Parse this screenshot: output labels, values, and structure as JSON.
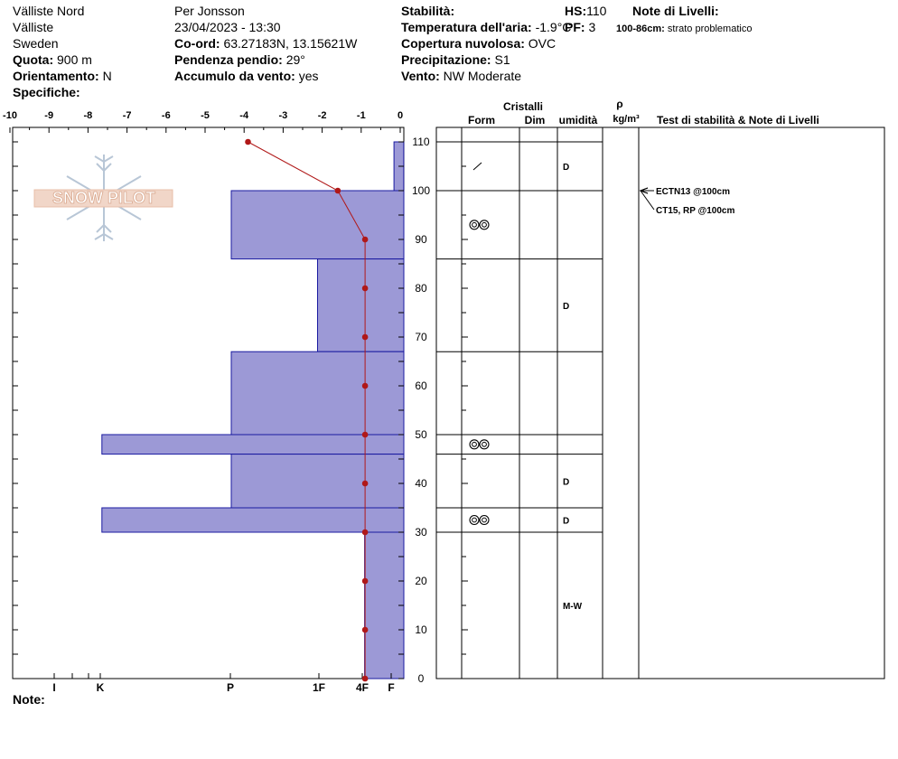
{
  "header": {
    "location": "Välliste Nord",
    "area": "Välliste",
    "country": "Sweden",
    "observer": "Per Jonsson",
    "datetime": "23/04/2023 - 13:30",
    "quota_label": "Quota:",
    "quota_value": "900 m",
    "orient_label": "Orientamento:",
    "orient_value": "N",
    "specifiche_label": "Specifiche:",
    "coord_label": "Co-ord:",
    "coord_value": "63.27183N, 13.15621W",
    "slope_label": "Pendenza pendio:",
    "slope_value": "29°",
    "windload_label": "Accumulo da vento:",
    "windload_value": "yes",
    "stability_label": "Stabilità:",
    "airtemp_label": "Temperatura dell'aria:",
    "airtemp_value": "-1.9°C",
    "cloud_label": "Copertura nuvolosa:",
    "cloud_value": "OVC",
    "precip_label": "Precipitazione:",
    "precip_value": "S1",
    "wind_label": "Vento:",
    "wind_value": "NW Moderate",
    "hs_label": "HS:",
    "hs_value": "110",
    "pf_label": "PF:",
    "pf_value": "3",
    "layer_notes_label": "Note di Livelli:",
    "layer_notes_range": "100-86cm:",
    "layer_notes_text": "strato problematico",
    "note_label": "Note:"
  },
  "logo_text": "SNOW PILOT",
  "columns": {
    "cristalli": "Cristalli",
    "form": "Form",
    "dim": "Dim",
    "umidita": "umidità",
    "rho": "ρ",
    "rho_unit": "kg/m³",
    "tests": "Test di stabilità & Note di Livelli"
  },
  "chart_data": {
    "type": "snow_profile",
    "temperature_axis": {
      "ticks": [
        "-10",
        "-9",
        "-8",
        "-7",
        "-6",
        "-5",
        "-4",
        "-3",
        "-2",
        "-1",
        "0"
      ],
      "range": [
        -10,
        0
      ]
    },
    "height_axis": {
      "ticks": [
        "0",
        "10",
        "20",
        "30",
        "40",
        "50",
        "60",
        "70",
        "80",
        "90",
        "100",
        "110"
      ],
      "range": [
        0,
        110
      ]
    },
    "hardness_axis": {
      "ticks": [
        "I",
        "K",
        "P",
        "1F",
        "4F",
        "F"
      ]
    },
    "hardness_layers": [
      {
        "top": 110,
        "bottom": 100,
        "hardness_index": 0.25
      },
      {
        "top": 100,
        "bottom": 86,
        "hardness_index": 4.4
      },
      {
        "top": 86,
        "bottom": 67,
        "hardness_index": 2.2
      },
      {
        "top": 67,
        "bottom": 50,
        "hardness_index": 4.4
      },
      {
        "top": 50,
        "bottom": 46,
        "hardness_index": 7.7
      },
      {
        "top": 46,
        "bottom": 35,
        "hardness_index": 4.4
      },
      {
        "top": 35,
        "bottom": 30,
        "hardness_index": 7.7
      },
      {
        "top": 30,
        "bottom": 0,
        "hardness_index": 1.0
      }
    ],
    "temperature_profile": [
      {
        "height": 110,
        "temp": -3.9
      },
      {
        "height": 100,
        "temp": -1.6
      },
      {
        "height": 90,
        "temp": -0.9
      },
      {
        "height": 80,
        "temp": -0.9
      },
      {
        "height": 70,
        "temp": -0.9
      },
      {
        "height": 60,
        "temp": -0.9
      },
      {
        "height": 50,
        "temp": -0.9
      },
      {
        "height": 40,
        "temp": -0.9
      },
      {
        "height": 30,
        "temp": -0.9
      },
      {
        "height": 20,
        "temp": -0.9
      },
      {
        "height": 10,
        "temp": -0.9
      },
      {
        "height": 0,
        "temp": -0.9
      }
    ],
    "layer_boundaries": [
      110,
      100,
      86,
      67,
      50,
      46,
      35,
      30,
      0
    ],
    "layers_table": [
      {
        "top": 110,
        "bottom": 100,
        "form": "/",
        "wetness": "D"
      },
      {
        "top": 100,
        "bottom": 86,
        "form": "⊚⊚",
        "wetness": ""
      },
      {
        "top": 86,
        "bottom": 67,
        "form": "",
        "wetness": "D"
      },
      {
        "top": 67,
        "bottom": 50,
        "form": "",
        "wetness": ""
      },
      {
        "top": 50,
        "bottom": 46,
        "form": "⊚⊚",
        "wetness": ""
      },
      {
        "top": 46,
        "bottom": 35,
        "form": "",
        "wetness": "D"
      },
      {
        "top": 35,
        "bottom": 30,
        "form": "⊚⊚",
        "wetness": "D"
      },
      {
        "top": 30,
        "bottom": 0,
        "form": "",
        "wetness": "M-W"
      }
    ],
    "stability_tests": [
      {
        "height": 100,
        "label": "ECTN13 @100cm"
      },
      {
        "height": 100,
        "label": "CT15, RP @100cm"
      }
    ],
    "colors": {
      "bars": "#9c99d6",
      "bar_stroke": "#1a1aa0",
      "temp_line": "#b01818"
    }
  }
}
